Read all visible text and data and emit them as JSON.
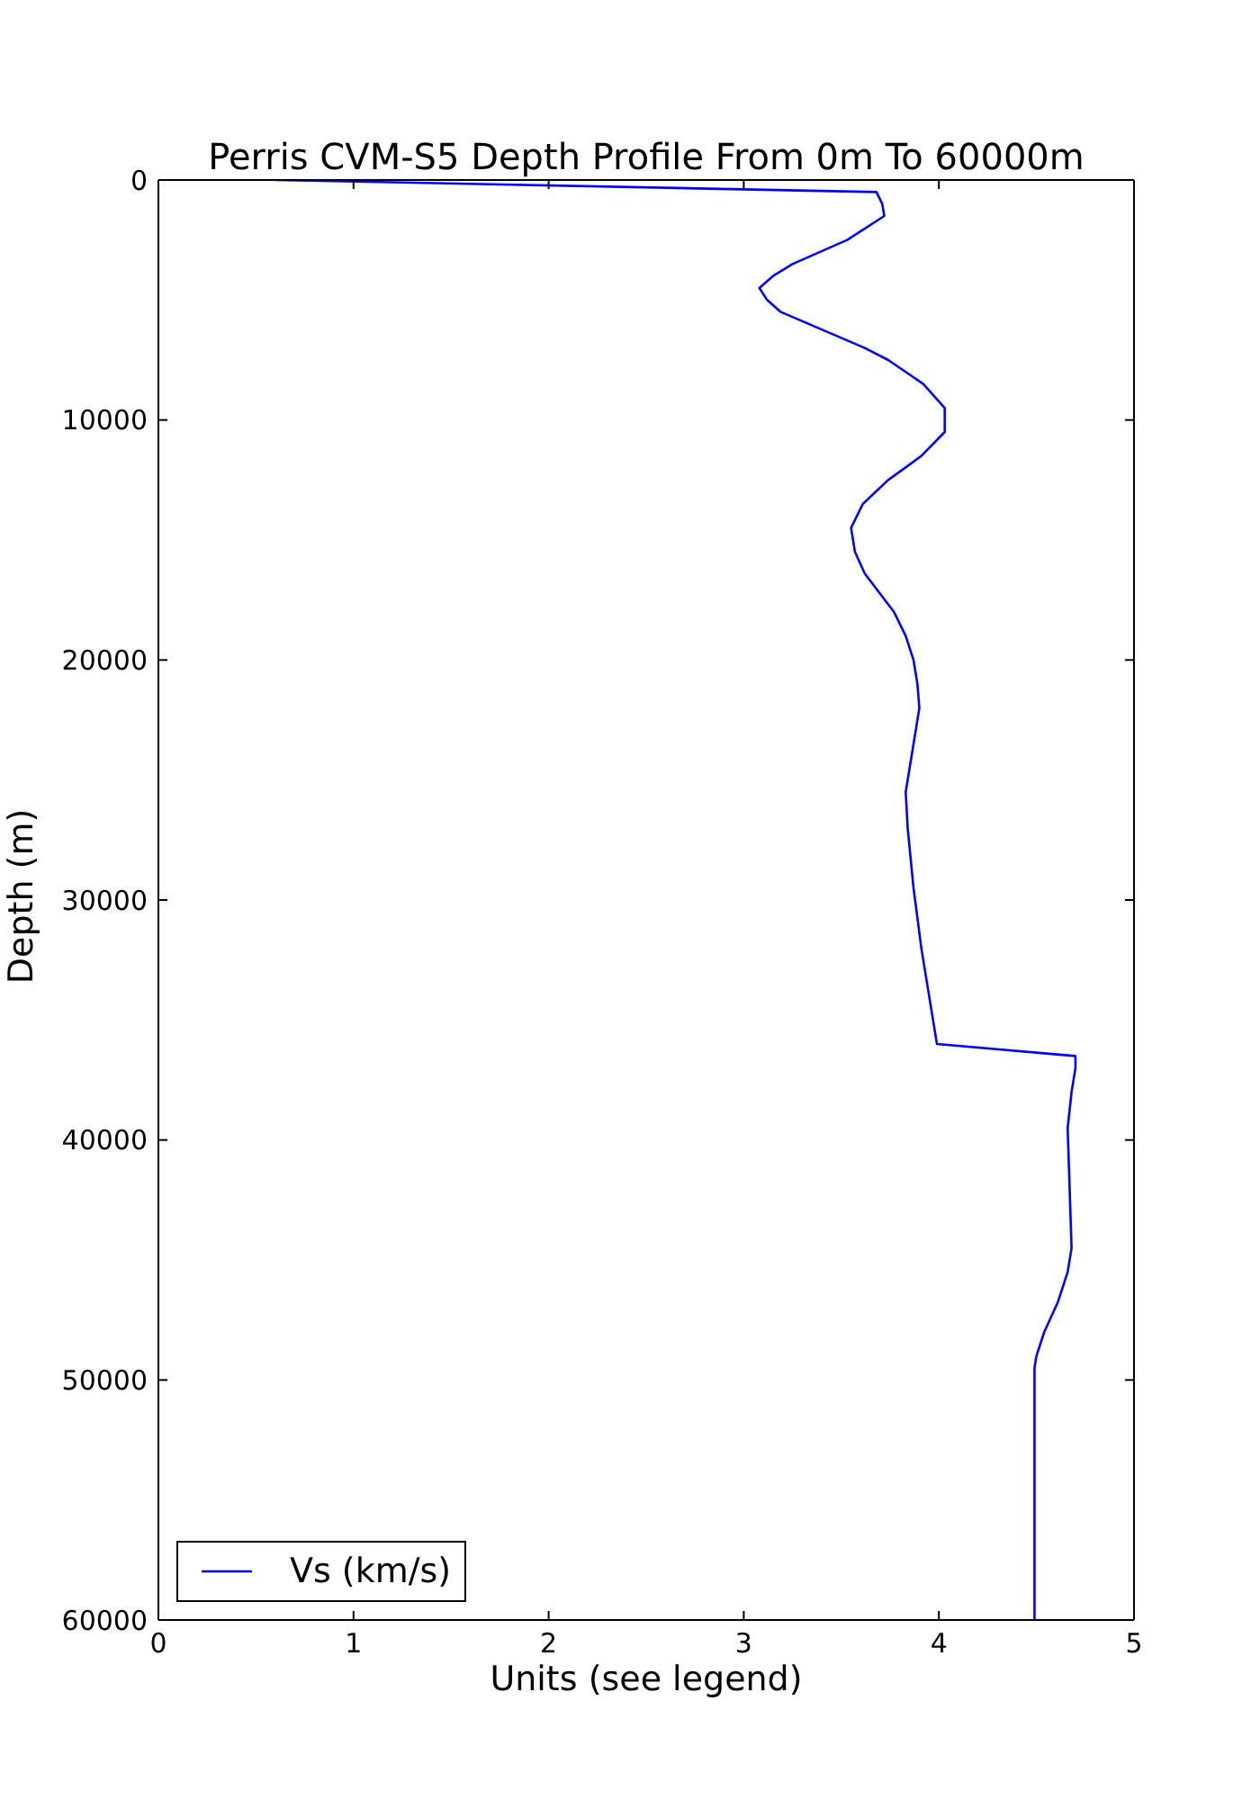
{
  "chart_data": {
    "type": "line",
    "title": "Perris CVM-S5 Depth Profile From 0m To 60000m",
    "xlabel": "Units (see legend)",
    "ylabel": "Depth (m)",
    "series": [
      {
        "name": "Vs (km/s)",
        "color": "#0000ff",
        "x": [
          0.6,
          3.68,
          3.71,
          3.72,
          3.53,
          3.25,
          3.15,
          3.08,
          3.12,
          3.19,
          3.62,
          3.74,
          3.92,
          4.03,
          4.03,
          3.91,
          3.74,
          3.61,
          3.55,
          3.57,
          3.62,
          3.77,
          3.83,
          3.87,
          3.89,
          3.9,
          3.86,
          3.83,
          3.84,
          3.87,
          3.91,
          3.95,
          3.99,
          4.7,
          4.7,
          4.68,
          4.66,
          4.67,
          4.68,
          4.66,
          4.61,
          4.54,
          4.5,
          4.49,
          4.49
        ],
        "values": [
          0,
          500,
          1000,
          1500,
          2500,
          3500,
          4000,
          4500,
          5000,
          5500,
          7000,
          7500,
          8500,
          9500,
          10500,
          11500,
          12500,
          13500,
          14500,
          15500,
          16400,
          18000,
          19000,
          20000,
          21000,
          22000,
          24000,
          25500,
          27000,
          29500,
          32000,
          34000,
          36000,
          36500,
          37000,
          38000,
          39500,
          42000,
          44500,
          45500,
          46750,
          48000,
          49000,
          49500,
          60000
        ]
      }
    ],
    "xlim": [
      0,
      5
    ],
    "xticks": [
      0,
      1,
      2,
      3,
      4,
      5
    ],
    "ylim": [
      60000,
      0
    ],
    "yticks": [
      0,
      10000,
      20000,
      30000,
      40000,
      50000,
      60000
    ],
    "legend": "bottom left"
  }
}
